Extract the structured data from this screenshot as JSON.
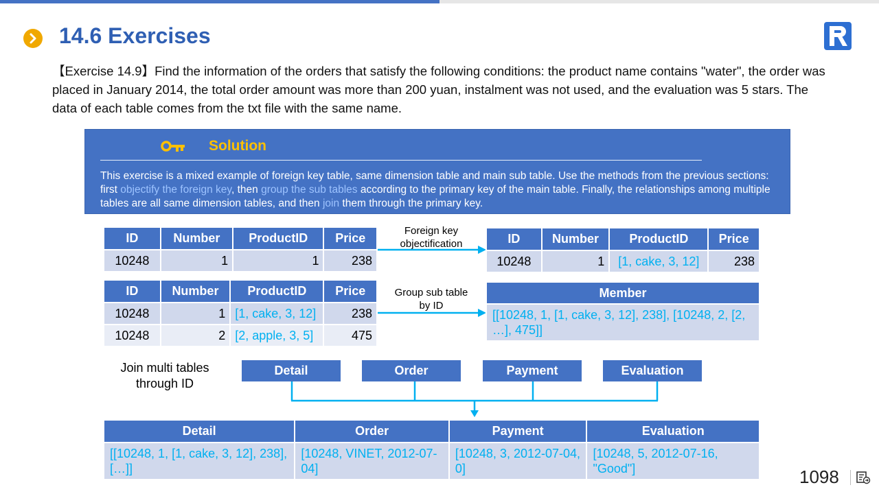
{
  "header": {
    "title": "14.6 Exercises"
  },
  "exercise": {
    "text": "【Exercise 14.9】Find the information of the orders that satisfy the following conditions: the product name contains \"water\", the order was placed in January 2014, the total order amount was more than 200 yuan, instalment was not used, and the evaluation was 5 stars. The data of each table comes from the txt file with the same name."
  },
  "solution": {
    "heading": "Solution",
    "text_1": "This exercise is a mixed example of foreign key table, same dimension table and main sub table. Use the methods from the previous sections: first ",
    "hl_1": "objectify the foreign key",
    "text_2": ", then ",
    "hl_2": "group the sub tables",
    "text_3": " according to the primary key of the main table. Finally, the relationships among multiple tables are all same dimension tables, and then ",
    "hl_3": "join",
    "text_4": " them through the primary key."
  },
  "table1": {
    "headers": [
      "ID",
      "Number",
      "ProductID",
      "Price"
    ],
    "row": [
      "10248",
      "1",
      "1",
      "238"
    ]
  },
  "table2": {
    "headers": [
      "ID",
      "Number",
      "ProductID",
      "Price"
    ],
    "row": [
      "10248",
      "1",
      "[1, cake, 3, 12]",
      "238"
    ]
  },
  "table3": {
    "headers": [
      "ID",
      "Number",
      "ProductID",
      "Price"
    ],
    "rows": [
      [
        "10248",
        "1",
        "[1, cake, 3, 12]",
        "238"
      ],
      [
        "10248",
        "2",
        "[2, apple, 3, 5]",
        "475"
      ]
    ]
  },
  "table4": {
    "header": "Member",
    "value": "[[10248, 1, [1, cake, 3, 12], 238], [10248, 2, [2, …], 475]]"
  },
  "notes": {
    "fk_line1": "Foreign key",
    "fk_line2": "objectification",
    "group_line1": "Group  sub table",
    "group_line2": "by ID",
    "join_line1": "Join multi tables",
    "join_line2": "through ID"
  },
  "join_tables": [
    "Detail",
    "Order",
    "Payment",
    "Evaluation"
  ],
  "table5": {
    "headers": [
      "Detail",
      "Order",
      "Payment",
      "Evaluation"
    ],
    "row": [
      "[[10248, 1, [1, cake, 3, 12], 238], […]]",
      "[10248, VINET, 2012-07-04]",
      "[10248, 3, 2012-07-04, 0]",
      "[10248, 5, 2012-07-16, \"Good\"]"
    ]
  },
  "footer": {
    "page_number": "1098"
  },
  "colors": {
    "accent": "#4472c4",
    "title": "#2f5fb3",
    "highlight": "#00b0f0",
    "solution_heading": "#ffc000"
  }
}
